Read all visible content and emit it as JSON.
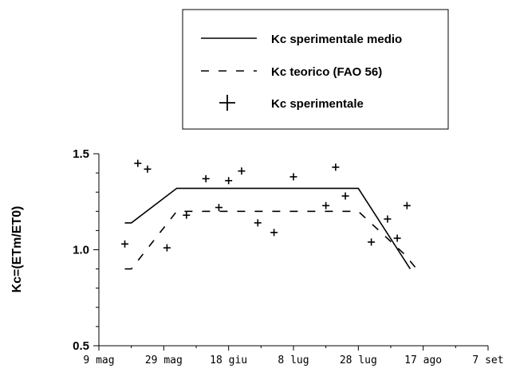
{
  "chart_data": {
    "type": "line",
    "ylabel": "Kc=(ETm/ET0)",
    "ylim": [
      0.5,
      1.5
    ],
    "yticks": [
      "0.5",
      "1.0",
      "1.5"
    ],
    "x_ticks": [
      "9 mag",
      "29 mag",
      "18 giu",
      "8 lug",
      "28 lug",
      "17 ago",
      "7 set"
    ],
    "x_tick_days": [
      0,
      20,
      40,
      60,
      80,
      100,
      120
    ],
    "xlim": [
      0,
      120
    ],
    "grid": false,
    "legend_position": "top-right",
    "series": [
      {
        "name": "Kc sperimentale medio",
        "style": "solid",
        "x": [
          8,
          10,
          24,
          80,
          96
        ],
        "y": [
          1.14,
          1.14,
          1.32,
          1.32,
          0.9
        ]
      },
      {
        "name": "Kc teorico (FAO 56)",
        "style": "dashed",
        "x": [
          8,
          10,
          24,
          80,
          94,
          98
        ],
        "y": [
          0.9,
          0.9,
          1.2,
          1.2,
          0.98,
          0.9
        ]
      },
      {
        "name": "Kc sperimentale",
        "style": "markers",
        "x": [
          8,
          12,
          15,
          21,
          27,
          33,
          37,
          40,
          44,
          49,
          54,
          60,
          70,
          73,
          76,
          84,
          89,
          92,
          95
        ],
        "y": [
          1.03,
          1.45,
          1.42,
          1.01,
          1.18,
          1.37,
          1.22,
          1.36,
          1.41,
          1.14,
          1.09,
          1.38,
          1.23,
          1.43,
          1.28,
          1.04,
          1.16,
          1.06,
          1.23
        ]
      }
    ]
  }
}
